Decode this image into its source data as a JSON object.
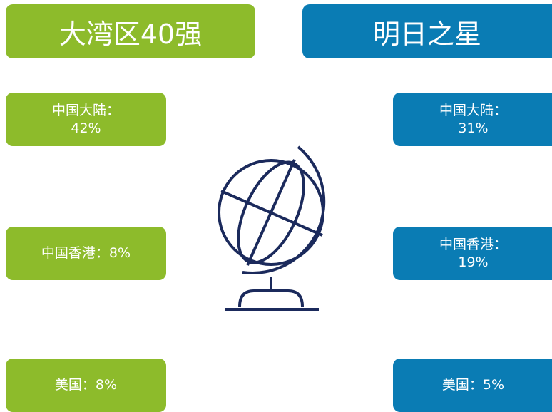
{
  "left": {
    "title": "大湾区40强",
    "items": [
      {
        "label": "中国大陆：",
        "value": "42%"
      },
      {
        "label": "中国香港：",
        "value": "8%"
      },
      {
        "label": "美国：",
        "value": "8%"
      }
    ]
  },
  "right": {
    "title": "明日之星",
    "items": [
      {
        "label": "中国大陆：",
        "value": "31%"
      },
      {
        "label": "中国香港：",
        "value": "19%"
      },
      {
        "label": "美国：",
        "value": "5%"
      }
    ]
  }
}
